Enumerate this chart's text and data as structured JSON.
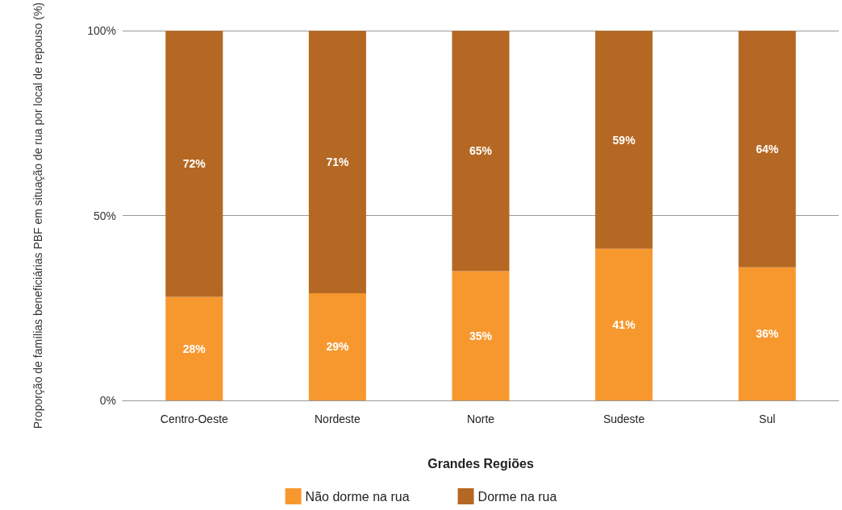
{
  "chart_data": {
    "type": "bar",
    "stacked": true,
    "categories": [
      "Centro-Oeste",
      "Nordeste",
      "Norte",
      "Sudeste",
      "Sul"
    ],
    "series": [
      {
        "name": "Não dorme na rua",
        "color": "#f7982f",
        "values": [
          28,
          29,
          35,
          41,
          36
        ],
        "value_labels": [
          "28%",
          "29%",
          "35%",
          "41%",
          "36%"
        ]
      },
      {
        "name": "Dorme na rua",
        "color": "#b56823",
        "values": [
          72,
          71,
          65,
          59,
          64
        ],
        "value_labels": [
          "72%",
          "71%",
          "65%",
          "59%",
          "64%"
        ]
      }
    ],
    "xlabel": "Grandes Regiões",
    "ylabel": "Proporção de famílias beneficiárias PBF em situação de rua por local de repouso (%)",
    "ylim": [
      0,
      100
    ],
    "yticks": [
      {
        "value": 0,
        "label": "0%"
      },
      {
        "value": 50,
        "label": "50%"
      },
      {
        "value": 100,
        "label": "100%"
      }
    ],
    "grid": "y",
    "legend": "bottom"
  }
}
